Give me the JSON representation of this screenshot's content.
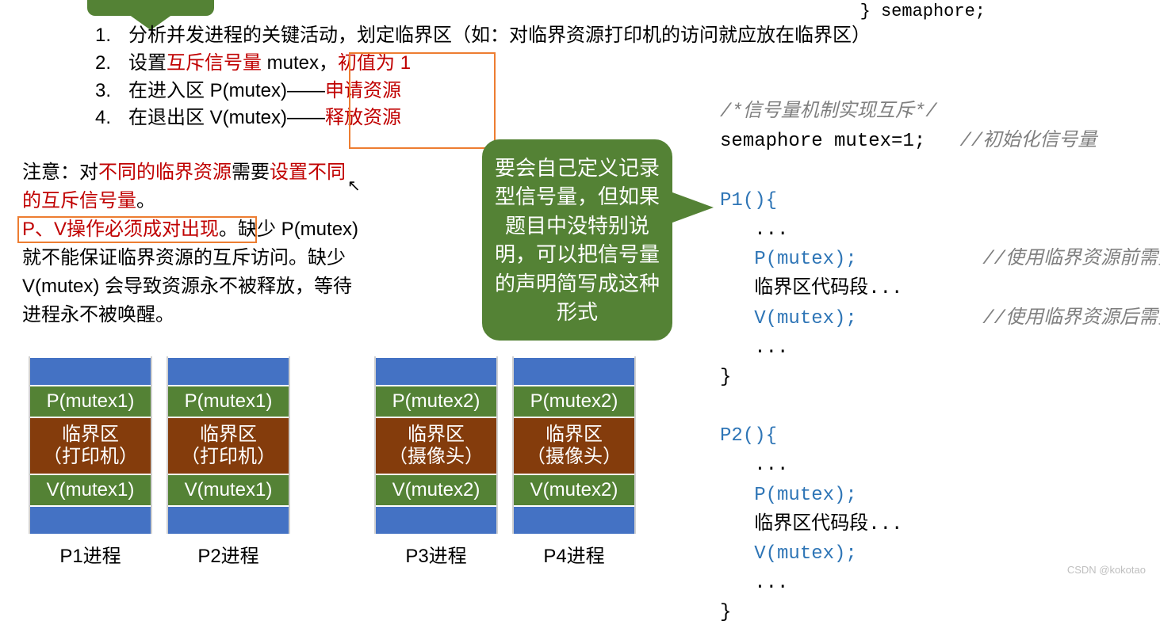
{
  "colors": {
    "red": "#c00000",
    "orange": "#ed7d31",
    "green_box": "#548235",
    "blue_box": "#4472c4",
    "brown_box": "#843c0c",
    "grey_comment": "#7f7f7f",
    "code_blue": "#2e75b6"
  },
  "top_struct": "} semaphore;",
  "list": {
    "n1": "1.",
    "t1": "分析并发进程的关键活动，划定临界区（如：对临界资源打印机的访问就应放在临界区）",
    "n2": "2.",
    "t2a": "设置",
    "t2b": "互斥信号量",
    "t2c": " mutex，",
    "t2d": "初值为 1",
    "n3": "3.",
    "t3a": "在进入区 P(mutex)——",
    "t3b": "申请资源",
    "n4": "4.",
    "t4a": "在退出区 V(mutex)——",
    "t4b": "释放资源"
  },
  "note": {
    "a": "注意：对",
    "b": "不同的临界资源",
    "c": "需要",
    "d": "设置不同的互斥信号量",
    "e": "。",
    "f": "P、V操作必须成对出现",
    "g": "。缺少 P(mutex) 就不能保证临界资源的互斥访问。缺少 V(mutex) 会导致资源永不被释放，等待进程永不被唤醒。"
  },
  "bubble": "要会自己定义记录型信号量，但如果题目中没特别说明，可以把信号量的声明简写成这种形式",
  "code": {
    "c1": "/*信号量机制实现互斥*/",
    "l1a": "semaphore mutex=1;   ",
    "l1b": "//初始化信号量",
    "p1h": "P1(){",
    "dots": "   ...",
    "pmutex": "   P(mutex);",
    "cm_lock": "           //使用临界资源前需要加锁",
    "crit": "   临界区代码段...",
    "vmutex": "   V(mutex);",
    "cm_unlock": "           //使用临界资源后需要解锁",
    "close": "}",
    "p2h": "P2(){"
  },
  "processes": [
    {
      "label": "P1进程",
      "p": "P(mutex1)",
      "crit": "临界区\n（打印机）",
      "v": "V(mutex1)"
    },
    {
      "label": "P2进程",
      "p": "P(mutex1)",
      "crit": "临界区\n（打印机）",
      "v": "V(mutex1)"
    },
    {
      "label": "P3进程",
      "p": "P(mutex2)",
      "crit": "临界区\n（摄像头）",
      "v": "V(mutex2)"
    },
    {
      "label": "P4进程",
      "p": "P(mutex2)",
      "crit": "临界区\n（摄像头）",
      "v": "V(mutex2)"
    }
  ],
  "watermark": "CSDN @kokotao"
}
